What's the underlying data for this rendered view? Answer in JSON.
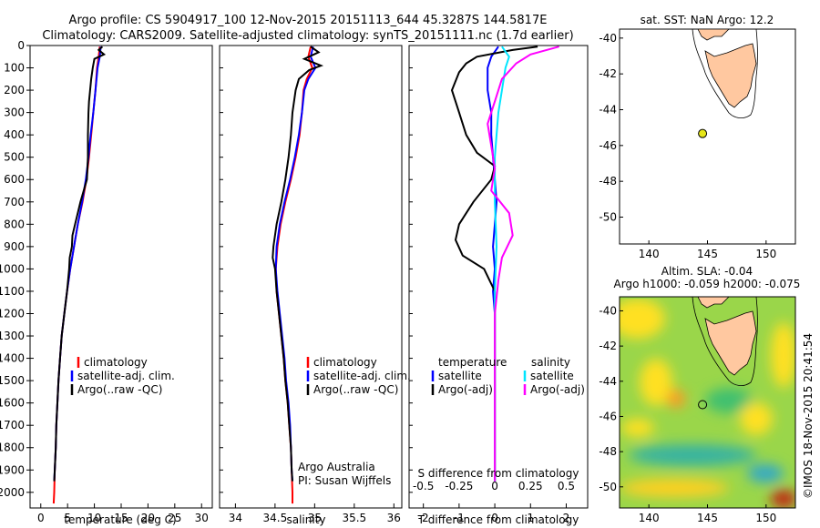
{
  "title": {
    "line1": "Argo profile: CS 5904917_100 12-Nov-2015 20151113_644 45.3287S 144.5817E",
    "line2": "Climatology: CARS2009. Satellite-adjusted climatology: synTS_20151111.nc (1.7d earlier)"
  },
  "colors": {
    "climatology": "#ff0000",
    "satellite": "#0000ff",
    "argo": "#000000",
    "salinity_satellite": "#00e5ff",
    "salinity_argo": "#ff00ff",
    "land": "#ffc8a0",
    "map_marker": "#e6e619"
  },
  "depth_ticks": [
    "0",
    "100",
    "200",
    "300",
    "400",
    "500",
    "600",
    "700",
    "800",
    "900",
    "1000",
    "1100",
    "1200",
    "1300",
    "1400",
    "1500",
    "1600",
    "1700",
    "1800",
    "1900",
    "2000"
  ],
  "chart_data": [
    {
      "type": "line",
      "panel": "temperature",
      "xlabel": "temperature (deg C)",
      "xlim": [
        -2,
        32
      ],
      "ylim": [
        0,
        2070
      ],
      "y_inverted": true,
      "xticks": [
        "0",
        "5",
        "10",
        "15",
        "20",
        "25",
        "30"
      ],
      "xtick_values": [
        0,
        5,
        10,
        15,
        20,
        25,
        30
      ],
      "legend": [
        "climatology",
        "satellite-adj. clim.",
        "Argo(..raw -QC)"
      ],
      "series": [
        {
          "name": "climatology",
          "points": [
            [
              11.0,
              5
            ],
            [
              10.8,
              50
            ],
            [
              10.5,
              100
            ],
            [
              10.2,
              200
            ],
            [
              9.8,
              300
            ],
            [
              9.4,
              400
            ],
            [
              9.0,
              500
            ],
            [
              8.5,
              600
            ],
            [
              7.8,
              700
            ],
            [
              6.9,
              800
            ],
            [
              6.2,
              900
            ],
            [
              5.5,
              1000
            ],
            [
              4.9,
              1100
            ],
            [
              4.4,
              1200
            ],
            [
              3.9,
              1300
            ],
            [
              3.6,
              1400
            ],
            [
              3.3,
              1500
            ],
            [
              3.1,
              1600
            ],
            [
              2.9,
              1700
            ],
            [
              2.8,
              1800
            ],
            [
              2.6,
              1900
            ],
            [
              2.5,
              2000
            ],
            [
              2.4,
              2050
            ]
          ]
        },
        {
          "name": "satellite-adj. clim.",
          "points": [
            [
              11.2,
              5
            ],
            [
              11.0,
              50
            ],
            [
              10.6,
              100
            ],
            [
              10.2,
              200
            ],
            [
              9.8,
              300
            ],
            [
              9.3,
              400
            ],
            [
              8.9,
              500
            ],
            [
              8.4,
              600
            ],
            [
              7.7,
              700
            ],
            [
              6.9,
              800
            ],
            [
              6.2,
              900
            ],
            [
              5.5,
              1000
            ],
            [
              4.9,
              1100
            ],
            [
              4.4,
              1200
            ],
            [
              3.9,
              1300
            ],
            [
              3.6,
              1400
            ],
            [
              3.3,
              1500
            ],
            [
              3.1,
              1600
            ],
            [
              2.9,
              1700
            ],
            [
              2.8,
              1800
            ],
            [
              2.6,
              1900
            ],
            [
              2.5,
              1950
            ]
          ]
        },
        {
          "name": "Argo(..raw -QC)",
          "points": [
            [
              11.5,
              5
            ],
            [
              10.8,
              20
            ],
            [
              11.8,
              40
            ],
            [
              10.0,
              60
            ],
            [
              9.7,
              100
            ],
            [
              9.4,
              150
            ],
            [
              9.2,
              200
            ],
            [
              9.0,
              250
            ],
            [
              8.9,
              300
            ],
            [
              8.8,
              400
            ],
            [
              8.8,
              500
            ],
            [
              8.6,
              600
            ],
            [
              7.4,
              700
            ],
            [
              6.4,
              800
            ],
            [
              5.9,
              850
            ],
            [
              5.8,
              900
            ],
            [
              5.4,
              950
            ],
            [
              5.3,
              1000
            ],
            [
              4.9,
              1100
            ],
            [
              4.4,
              1200
            ],
            [
              3.9,
              1300
            ],
            [
              3.6,
              1400
            ],
            [
              3.3,
              1500
            ],
            [
              3.1,
              1600
            ],
            [
              2.9,
              1700
            ],
            [
              2.8,
              1800
            ],
            [
              2.6,
              1900
            ],
            [
              2.5,
              1950
            ]
          ]
        }
      ]
    },
    {
      "type": "line",
      "panel": "salinity",
      "xlabel": "salinity",
      "xlim": [
        33.8,
        36.1
      ],
      "ylim": [
        0,
        2070
      ],
      "y_inverted": true,
      "xticks": [
        "34",
        "34.5",
        "35",
        "35.5",
        "36"
      ],
      "xtick_values": [
        34,
        34.5,
        35,
        35.5,
        36
      ],
      "legend": [
        "climatology",
        "satellite-adj. clim.",
        "Argo(..raw -QC)"
      ],
      "annotation": [
        "Argo Australia",
        "PI: Susan Wijffels"
      ],
      "series": [
        {
          "name": "climatology",
          "points": [
            [
              34.95,
              5
            ],
            [
              34.92,
              50
            ],
            [
              34.97,
              100
            ],
            [
              34.9,
              150
            ],
            [
              34.86,
              200
            ],
            [
              34.84,
              300
            ],
            [
              34.81,
              400
            ],
            [
              34.76,
              500
            ],
            [
              34.7,
              600
            ],
            [
              34.63,
              700
            ],
            [
              34.57,
              800
            ],
            [
              34.53,
              900
            ],
            [
              34.51,
              1000
            ],
            [
              34.52,
              1100
            ],
            [
              34.55,
              1200
            ],
            [
              34.58,
              1300
            ],
            [
              34.61,
              1400
            ],
            [
              34.63,
              1500
            ],
            [
              34.66,
              1600
            ],
            [
              34.68,
              1700
            ],
            [
              34.7,
              1800
            ],
            [
              34.71,
              1900
            ],
            [
              34.72,
              2000
            ],
            [
              34.72,
              2050
            ]
          ]
        },
        {
          "name": "satellite-adj. clim.",
          "points": [
            [
              34.98,
              5
            ],
            [
              34.95,
              50
            ],
            [
              35.01,
              100
            ],
            [
              34.92,
              150
            ],
            [
              34.87,
              200
            ],
            [
              34.84,
              300
            ],
            [
              34.8,
              400
            ],
            [
              34.75,
              500
            ],
            [
              34.69,
              600
            ],
            [
              34.62,
              700
            ],
            [
              34.56,
              800
            ],
            [
              34.52,
              900
            ],
            [
              34.51,
              1000
            ],
            [
              34.53,
              1100
            ],
            [
              34.56,
              1200
            ],
            [
              34.59,
              1300
            ],
            [
              34.62,
              1400
            ],
            [
              34.64,
              1500
            ],
            [
              34.67,
              1600
            ],
            [
              34.69,
              1700
            ],
            [
              34.7,
              1800
            ],
            [
              34.71,
              1900
            ],
            [
              34.72,
              1950
            ]
          ]
        },
        {
          "name": "Argo(..raw -QC)",
          "points": [
            [
              34.95,
              5
            ],
            [
              35.05,
              30
            ],
            [
              34.87,
              60
            ],
            [
              35.08,
              90
            ],
            [
              34.93,
              110
            ],
            [
              34.8,
              150
            ],
            [
              34.76,
              200
            ],
            [
              34.72,
              300
            ],
            [
              34.7,
              400
            ],
            [
              34.67,
              500
            ],
            [
              34.63,
              600
            ],
            [
              34.58,
              700
            ],
            [
              34.52,
              800
            ],
            [
              34.48,
              900
            ],
            [
              34.47,
              950
            ],
            [
              34.5,
              1000
            ],
            [
              34.52,
              1100
            ],
            [
              34.55,
              1200
            ],
            [
              34.58,
              1300
            ],
            [
              34.61,
              1400
            ],
            [
              34.63,
              1500
            ],
            [
              34.66,
              1600
            ],
            [
              34.68,
              1700
            ],
            [
              34.7,
              1800
            ],
            [
              34.71,
              1900
            ],
            [
              34.72,
              1950
            ]
          ]
        }
      ]
    },
    {
      "type": "line",
      "panel": "difference",
      "xlabel": "T difference from climatology",
      "xlabel2": "S difference from climatology",
      "xlim": [
        -2.4,
        2.6
      ],
      "ylim": [
        0,
        2070
      ],
      "y_inverted": true,
      "xticks": [
        "-2",
        "-1",
        "0",
        "1",
        "2"
      ],
      "xtick_values": [
        -2,
        -1,
        0,
        1,
        2
      ],
      "xticks_s": [
        "-0.5",
        "-0.25",
        "0",
        "0.25",
        "0.5"
      ],
      "xticks_s_values": [
        -2,
        -1,
        0,
        1,
        2
      ],
      "legend_headers": [
        "temperature",
        "salinity"
      ],
      "legend": [
        "satellite",
        "Argo(-adj)",
        "satellite",
        "Argo(-adj)"
      ],
      "series": [
        {
          "name": "satellite",
          "points": [
            [
              0.1,
              5
            ],
            [
              -0.1,
              50
            ],
            [
              -0.2,
              100
            ],
            [
              -0.2,
              200
            ],
            [
              -0.1,
              300
            ],
            [
              -0.1,
              400
            ],
            [
              -0.05,
              500
            ],
            [
              0.0,
              600
            ],
            [
              0.05,
              700
            ],
            [
              0.0,
              800
            ],
            [
              -0.05,
              900
            ],
            [
              0.0,
              1000
            ],
            [
              -0.05,
              1100
            ],
            [
              0.0,
              1200
            ],
            [
              0.0,
              1400
            ],
            [
              0.0,
              1600
            ],
            [
              0.0,
              1800
            ],
            [
              0.0,
              1950
            ]
          ]
        },
        {
          "name": "Argo(-adj)",
          "points": [
            [
              1.2,
              5
            ],
            [
              0.5,
              20
            ],
            [
              -0.5,
              50
            ],
            [
              -0.8,
              80
            ],
            [
              -1.0,
              120
            ],
            [
              -1.2,
              200
            ],
            [
              -1.0,
              300
            ],
            [
              -0.8,
              400
            ],
            [
              -0.5,
              480
            ],
            [
              0.0,
              540
            ],
            [
              -0.1,
              600
            ],
            [
              -0.6,
              700
            ],
            [
              -1.0,
              800
            ],
            [
              -1.1,
              870
            ],
            [
              -0.9,
              940
            ],
            [
              -0.3,
              1000
            ],
            [
              0.0,
              1100
            ],
            [
              0.0,
              1300
            ],
            [
              0.0,
              1600
            ],
            [
              0.0,
              1950
            ]
          ]
        },
        {
          "name": "satellite",
          "points": [
            [
              0.2,
              5
            ],
            [
              0.4,
              50
            ],
            [
              0.3,
              100
            ],
            [
              0.2,
              200
            ],
            [
              0.1,
              300
            ],
            [
              0.05,
              400
            ],
            [
              0.0,
              500
            ],
            [
              0.0,
              700
            ],
            [
              0.05,
              900
            ],
            [
              0.0,
              1100
            ],
            [
              0.0,
              1400
            ],
            [
              0.0,
              1700
            ],
            [
              0.0,
              1950
            ]
          ]
        },
        {
          "name": "Argo(-adj)",
          "points": [
            [
              1.8,
              5
            ],
            [
              1.0,
              40
            ],
            [
              0.6,
              80
            ],
            [
              0.2,
              150
            ],
            [
              0.0,
              250
            ],
            [
              -0.2,
              350
            ],
            [
              -0.1,
              450
            ],
            [
              0.0,
              550
            ],
            [
              -0.1,
              650
            ],
            [
              0.4,
              750
            ],
            [
              0.5,
              850
            ],
            [
              0.2,
              950
            ],
            [
              0.1,
              1050
            ],
            [
              0.0,
              1200
            ],
            [
              0.0,
              1500
            ],
            [
              0.0,
              1950
            ]
          ]
        }
      ]
    },
    {
      "type": "scatter",
      "panel": "sst-map",
      "title": "sat. SST: NaN Argo: 12.2",
      "xlim": [
        137.5,
        152.5
      ],
      "ylim": [
        -51.5,
        -39.5
      ],
      "xticks": [
        "140",
        "145",
        "150"
      ],
      "xtick_values": [
        140,
        145,
        150
      ],
      "yticks": [
        "-40",
        "-42",
        "-44",
        "-46",
        "-48",
        "-50"
      ],
      "ytick_values": [
        -40,
        -42,
        -44,
        -46,
        -48,
        -50
      ],
      "marker": {
        "lon": 144.58,
        "lat": -45.33
      }
    },
    {
      "type": "heatmap",
      "panel": "sla-map",
      "title": "Altim. SLA: -0.04",
      "subtitle": "Argo h1000: -0.059 h2000: -0.075",
      "xlim": [
        137.5,
        152.5
      ],
      "ylim": [
        -51.2,
        -39.2
      ],
      "xticks": [
        "140",
        "145",
        "150"
      ],
      "xtick_values": [
        140,
        145,
        150
      ],
      "yticks": [
        "-40",
        "-42",
        "-44",
        "-46",
        "-48",
        "-50"
      ],
      "ytick_values": [
        -40,
        -42,
        -44,
        -46,
        -48,
        -50
      ],
      "marker": {
        "lon": 144.58,
        "lat": -45.33
      }
    }
  ],
  "credit": "©IMOS 18-Nov-2015 20:41:54"
}
